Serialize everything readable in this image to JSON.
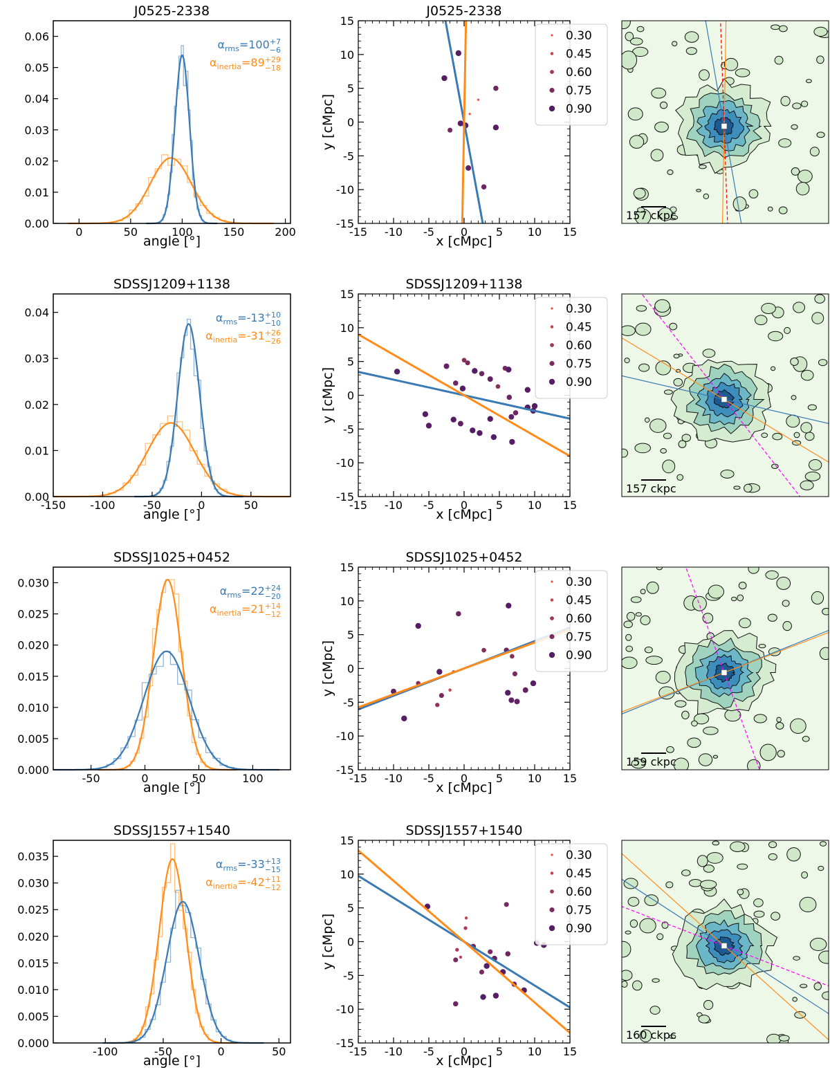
{
  "figure": {
    "rows": [
      {
        "name": "J0525-2338",
        "hist": {
          "title": "J0525-2338",
          "xlabel": "angle [°]",
          "xlim": [
            -25,
            205
          ],
          "ylim": [
            0,
            0.065
          ],
          "xticks": [
            0,
            50,
            100,
            150,
            200
          ],
          "yticks": [
            0.0,
            0.01,
            0.02,
            0.03,
            0.04,
            0.05,
            0.06
          ],
          "ydec": 2,
          "rms": {
            "label": "α",
            "sub": "rms",
            "value": "100",
            "up": "+7",
            "lo": "−6",
            "mu": 100,
            "sig": 7,
            "peak": 0.054,
            "histpeak": 0.064
          },
          "inertia": {
            "label": "α",
            "sub": "inertia",
            "value": "89",
            "up": "+29",
            "lo": "−18",
            "mu": 89,
            "sig": 20,
            "peak": 0.021,
            "histpeak": 0.022
          }
        },
        "scatter": {
          "title": "J0525-2338",
          "xlabel": "x [cMpc]",
          "ylabel": "y [cMpc]",
          "xlim": [
            -15,
            15
          ],
          "ylim": [
            -15,
            15
          ],
          "ticks": [
            -15,
            -10,
            -5,
            0,
            5,
            10,
            15
          ],
          "rms_angle": 100,
          "inertia_angle": 89,
          "legend": [
            "0.30",
            "0.45",
            "0.60",
            "0.75",
            "0.90"
          ],
          "points": [
            [
              -0.8,
              10.2,
              0.9
            ],
            [
              -2.8,
              6.5,
              0.9
            ],
            [
              4.5,
              5.0,
              0.8
            ],
            [
              -2.0,
              -1.2,
              0.75
            ],
            [
              -0.5,
              -0.2,
              0.9
            ],
            [
              0.2,
              -0.5,
              0.9
            ],
            [
              4.5,
              -0.8,
              0.9
            ],
            [
              0.6,
              -6.8,
              0.85
            ],
            [
              2.8,
              -9.6,
              0.8
            ],
            [
              0.8,
              1.2,
              0.3
            ],
            [
              2.0,
              3.3,
              0.3
            ]
          ]
        },
        "map": {
          "scale_label": "157 ckpc",
          "rms_angle": 100,
          "inertia_angle": 89,
          "dashed_angle": 92,
          "dashed_color": "red",
          "seed": 11
        }
      },
      {
        "name": "SDSSJ1209+1138",
        "hist": {
          "title": "SDSSJ1209+1138",
          "xlabel": "angle [°]",
          "xlim": [
            -150,
            90
          ],
          "ylim": [
            0,
            0.044
          ],
          "xticks": [
            -150,
            -100,
            -50,
            0,
            50
          ],
          "yticks": [
            0.0,
            0.01,
            0.02,
            0.03,
            0.04
          ],
          "ydec": 2,
          "rms": {
            "label": "α",
            "sub": "rms",
            "value": "-13",
            "up": "+10",
            "lo": "−10",
            "mu": -13,
            "sig": 11,
            "peak": 0.0375,
            "histpeak": 0.041
          },
          "inertia": {
            "label": "α",
            "sub": "inertia",
            "value": "-31",
            "up": "+26",
            "lo": "−26",
            "mu": -31,
            "sig": 24,
            "peak": 0.016,
            "histpeak": 0.0175
          }
        },
        "scatter": {
          "title": "SDSSJ1209+1138",
          "xlabel": "x [cMpc]",
          "ylabel": "y [cMpc]",
          "xlim": [
            -15,
            15
          ],
          "ylim": [
            -15,
            15
          ],
          "ticks": [
            -15,
            -10,
            -5,
            0,
            5,
            10,
            15
          ],
          "rms_angle": -13,
          "inertia_angle": -31,
          "legend": [
            "0.30",
            "0.45",
            "0.60",
            "0.75",
            "0.90"
          ],
          "points": [
            [
              -9.5,
              3.5,
              0.9
            ],
            [
              -2.5,
              4.3,
              0.85
            ],
            [
              -1.2,
              1.8,
              0.8
            ],
            [
              -0.2,
              1.0,
              0.9
            ],
            [
              0.0,
              5.2,
              0.7
            ],
            [
              0.5,
              4.8,
              0.75
            ],
            [
              1.5,
              3.6,
              0.9
            ],
            [
              2.5,
              3.2,
              0.8
            ],
            [
              3.7,
              2.4,
              0.85
            ],
            [
              5.8,
              4.0,
              0.75
            ],
            [
              6.3,
              3.8,
              0.9
            ],
            [
              6.4,
              -0.3,
              0.8
            ],
            [
              -5.5,
              -2.8,
              0.9
            ],
            [
              -5.0,
              -4.5,
              0.9
            ],
            [
              -1.5,
              -3.6,
              0.9
            ],
            [
              -0.5,
              -4.2,
              0.85
            ],
            [
              1.2,
              -5.2,
              0.9
            ],
            [
              2.2,
              -5.6,
              0.9
            ],
            [
              3.7,
              -3.5,
              0.9
            ],
            [
              4.2,
              -6.2,
              0.9
            ],
            [
              6.7,
              -3.2,
              0.85
            ],
            [
              7.3,
              -2.6,
              0.8
            ],
            [
              6.8,
              -6.9,
              0.9
            ],
            [
              9.0,
              -1.8,
              0.9
            ],
            [
              9.8,
              -2.3,
              0.9
            ],
            [
              10.0,
              -1.6,
              0.9
            ],
            [
              9.0,
              0.8,
              0.9
            ],
            [
              4.8,
              1.3,
              0.7
            ]
          ]
        },
        "map": {
          "scale_label": "157 ckpc",
          "rms_angle": -13,
          "inertia_angle": -31,
          "dashed_angle": -52,
          "dashed_color": "magenta",
          "seed": 23
        }
      },
      {
        "name": "SDSSJ1025+0452",
        "hist": {
          "title": "SDSSJ1025+0452",
          "xlabel": "angle [°]",
          "xlim": [
            -85,
            135
          ],
          "ylim": [
            0,
            0.0325
          ],
          "xticks": [
            -50,
            0,
            50,
            100
          ],
          "yticks": [
            0.0,
            0.005,
            0.01,
            0.015,
            0.02,
            0.025,
            0.03
          ],
          "ydec": 3,
          "rms": {
            "label": "α",
            "sub": "rms",
            "value": "22",
            "up": "+24",
            "lo": "−20",
            "mu": 20,
            "sig": 21,
            "peak": 0.019,
            "histpeak": 0.0215
          },
          "inertia": {
            "label": "α",
            "sub": "inertia",
            "value": "21",
            "up": "+14",
            "lo": "−12",
            "mu": 21,
            "sig": 13,
            "peak": 0.0305,
            "histpeak": 0.0305
          }
        },
        "scatter": {
          "title": "SDSSJ1025+0452",
          "xlabel": "x [cMpc]",
          "ylabel": "y [cMpc]",
          "xlim": [
            -15,
            15
          ],
          "ylim": [
            -15,
            15
          ],
          "ticks": [
            -15,
            -10,
            -5,
            0,
            5,
            10,
            15
          ],
          "rms_angle": 22,
          "inertia_angle": 21,
          "legend": [
            "0.30",
            "0.45",
            "0.60",
            "0.75",
            "0.90"
          ],
          "points": [
            [
              -6.5,
              6.3,
              0.9
            ],
            [
              -0.8,
              8.1,
              0.8
            ],
            [
              6.3,
              9.3,
              0.9
            ],
            [
              -10.0,
              -3.4,
              0.85
            ],
            [
              -3.5,
              -0.5,
              0.9
            ],
            [
              -8.5,
              -7.4,
              0.9
            ],
            [
              -3.2,
              -4.0,
              0.75
            ],
            [
              -3.8,
              -5.4,
              0.65
            ],
            [
              -6.5,
              -2.2,
              0.7
            ],
            [
              -2.0,
              -3.2,
              0.45
            ],
            [
              2.8,
              2.7,
              0.7
            ],
            [
              6.0,
              2.7,
              0.8
            ],
            [
              6.8,
              1.8,
              0.7
            ],
            [
              7.2,
              -0.8,
              0.75
            ],
            [
              6.2,
              -3.6,
              0.9
            ],
            [
              6.7,
              -4.7,
              0.85
            ],
            [
              7.5,
              -4.9,
              0.85
            ],
            [
              8.7,
              -3.2,
              0.85
            ],
            [
              9.8,
              -2.2,
              0.9
            ],
            [
              -1.5,
              -0.5,
              0.45
            ]
          ]
        },
        "map": {
          "scale_label": "159 ckpc",
          "rms_angle": 22,
          "inertia_angle": 21,
          "dashed_angle": -70,
          "dashed_color": "magenta",
          "seed": 37
        }
      },
      {
        "name": "SDSSJ1557+1540",
        "hist": {
          "title": "SDSSJ1557+1540",
          "xlabel": "angle [°]",
          "xlim": [
            -145,
            60
          ],
          "ylim": [
            0,
            0.038
          ],
          "xticks": [
            -100,
            -50,
            0,
            50
          ],
          "yticks": [
            0.0,
            0.005,
            0.01,
            0.015,
            0.02,
            0.025,
            0.03,
            0.035
          ],
          "ydec": 3,
          "rms": {
            "label": "α",
            "sub": "rms",
            "value": "-33",
            "up": "+13",
            "lo": "−15",
            "mu": -33,
            "sig": 14,
            "peak": 0.0265,
            "histpeak": 0.0295
          },
          "inertia": {
            "label": "α",
            "sub": "inertia",
            "value": "-42",
            "up": "+11",
            "lo": "−12",
            "mu": -42,
            "sig": 11.5,
            "peak": 0.0345,
            "histpeak": 0.0375
          }
        },
        "scatter": {
          "title": "SDSSJ1557+1540",
          "xlabel": "x [cMpc]",
          "ylabel": "y [cMpc]",
          "xlim": [
            -15,
            15
          ],
          "ylim": [
            -15,
            15
          ],
          "ticks": [
            -15,
            -10,
            -5,
            0,
            5,
            10,
            15
          ],
          "rms_angle": -33,
          "inertia_angle": -42,
          "legend": [
            "0.30",
            "0.45",
            "0.60",
            "0.75",
            "0.90"
          ],
          "points": [
            [
              -5.2,
              5.2,
              0.9
            ],
            [
              0.3,
              3.5,
              0.45
            ],
            [
              0.2,
              2.0,
              0.55
            ],
            [
              -1.0,
              -1.2,
              0.55
            ],
            [
              -0.5,
              -2.3,
              0.45
            ],
            [
              -1.2,
              -2.7,
              0.75
            ],
            [
              1.3,
              -0.7,
              0.8
            ],
            [
              2.5,
              -4.5,
              0.75
            ],
            [
              3.7,
              -1.5,
              0.75
            ],
            [
              4.3,
              -2.5,
              0.85
            ],
            [
              6.0,
              5.5,
              0.75
            ],
            [
              6.2,
              -1.8,
              0.8
            ],
            [
              5.5,
              -4.5,
              0.9
            ],
            [
              7.1,
              -6.3,
              0.8
            ],
            [
              3.2,
              -3.6,
              0.9
            ],
            [
              2.7,
              -8.2,
              0.9
            ],
            [
              4.5,
              -8.0,
              0.9
            ],
            [
              8.5,
              -7.2,
              0.9
            ],
            [
              -1.2,
              -9.2,
              0.8
            ],
            [
              10.3,
              -0.2,
              0.9
            ],
            [
              11.3,
              -0.5,
              0.9
            ]
          ]
        },
        "map": {
          "scale_label": "160 ckpc",
          "rms_angle": -33,
          "inertia_angle": -42,
          "dashed_angle": -21,
          "dashed_color": "magenta",
          "seed": 53
        }
      }
    ]
  },
  "chart_data": [
    {
      "type": "histogram+kde",
      "title": "J0525-2338",
      "xlabel": "angle [°]",
      "xlim": [
        -25,
        205
      ],
      "ylim": [
        0,
        0.065
      ],
      "series": [
        {
          "name": "α_rms",
          "value": 100,
          "err": [
            "+7",
            "−6"
          ]
        },
        {
          "name": "α_inertia",
          "value": 89,
          "err": [
            "+29",
            "−18"
          ]
        }
      ]
    },
    {
      "type": "scatter",
      "title": "J0525-2338",
      "xlabel": "x [cMpc]",
      "ylabel": "y [cMpc]",
      "xlim": [
        -15,
        15
      ],
      "ylim": [
        -15,
        15
      ],
      "legend": [
        "0.30",
        "0.45",
        "0.60",
        "0.75",
        "0.90"
      ]
    },
    {
      "type": "histogram+kde",
      "title": "SDSSJ1209+1138",
      "xlabel": "angle [°]",
      "xlim": [
        -150,
        90
      ],
      "ylim": [
        0,
        0.044
      ],
      "series": [
        {
          "name": "α_rms",
          "value": -13,
          "err": [
            "+10",
            "−10"
          ]
        },
        {
          "name": "α_inertia",
          "value": -31,
          "err": [
            "+26",
            "−26"
          ]
        }
      ]
    },
    {
      "type": "scatter",
      "title": "SDSSJ1209+1138",
      "xlabel": "x [cMpc]",
      "ylabel": "y [cMpc]",
      "xlim": [
        -15,
        15
      ],
      "ylim": [
        -15,
        15
      ],
      "legend": [
        "0.30",
        "0.45",
        "0.60",
        "0.75",
        "0.90"
      ]
    },
    {
      "type": "histogram+kde",
      "title": "SDSSJ1025+0452",
      "xlabel": "angle [°]",
      "xlim": [
        -85,
        135
      ],
      "ylim": [
        0,
        0.0325
      ],
      "series": [
        {
          "name": "α_rms",
          "value": 22,
          "err": [
            "+24",
            "−20"
          ]
        },
        {
          "name": "α_inertia",
          "value": 21,
          "err": [
            "+14",
            "−12"
          ]
        }
      ]
    },
    {
      "type": "scatter",
      "title": "SDSSJ1025+0452",
      "xlabel": "x [cMpc]",
      "ylabel": "y [cMpc]",
      "xlim": [
        -15,
        15
      ],
      "ylim": [
        -15,
        15
      ],
      "legend": [
        "0.30",
        "0.45",
        "0.60",
        "0.75",
        "0.90"
      ]
    },
    {
      "type": "histogram+kde",
      "title": "SDSSJ1557+1540",
      "xlabel": "angle [°]",
      "xlim": [
        -145,
        60
      ],
      "ylim": [
        0,
        0.038
      ],
      "series": [
        {
          "name": "α_rms",
          "value": -33,
          "err": [
            "+13",
            "−15"
          ]
        },
        {
          "name": "α_inertia",
          "value": -42,
          "err": [
            "+11",
            "−12"
          ]
        }
      ]
    },
    {
      "type": "scatter",
      "title": "SDSSJ1557+1540",
      "xlabel": "x [cMpc]",
      "ylabel": "y [cMpc]",
      "xlim": [
        -15,
        15
      ],
      "ylim": [
        -15,
        15
      ],
      "legend": [
        "0.30",
        "0.45",
        "0.60",
        "0.75",
        "0.90"
      ]
    }
  ],
  "colors": {
    "rms": "#3a7ab4",
    "inertia": "#ff8c1a",
    "axis": "#000000"
  }
}
